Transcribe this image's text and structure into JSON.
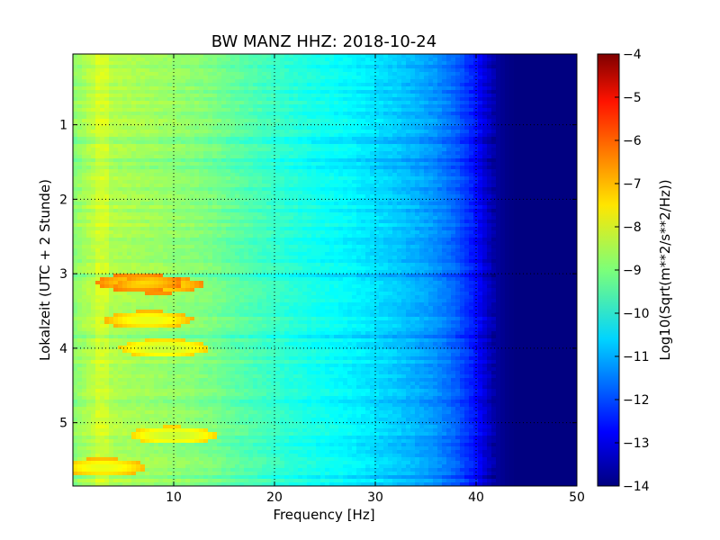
{
  "chart_data": {
    "type": "heatmap",
    "title": "BW MANZ HHZ: 2018-10-24",
    "xlabel": "Frequency [Hz]",
    "ylabel": "Lokalzeit (UTC + 2 Stunde)",
    "xlim": [
      0,
      50
    ],
    "ylim": [
      5.85,
      0.05
    ],
    "x_ticks": [
      10,
      20,
      30,
      40,
      50
    ],
    "y_ticks": [
      1,
      2,
      3,
      4,
      5
    ],
    "grid": true,
    "colormap": "jet",
    "colorbar": {
      "label": "Log10(Sqrt(m**2/s**2/Hz))",
      "range": [
        -14,
        -4
      ],
      "ticks": [
        -4,
        -5,
        -6,
        -7,
        -8,
        -9,
        -10,
        -11,
        -12,
        -13,
        -14
      ]
    },
    "frequency_profile_hz": [
      0,
      2,
      4,
      6,
      8,
      10,
      12,
      14,
      16,
      18,
      20,
      22,
      24,
      26,
      28,
      30,
      32,
      34,
      36,
      38,
      40,
      41,
      42,
      43,
      44,
      46,
      48,
      50
    ],
    "frequency_profile_value": [
      -8.9,
      -8.4,
      -8.5,
      -8.6,
      -8.7,
      -8.8,
      -8.9,
      -9.05,
      -9.3,
      -9.5,
      -9.7,
      -9.9,
      -10.05,
      -10.2,
      -10.35,
      -10.55,
      -10.75,
      -11.0,
      -11.3,
      -11.8,
      -12.6,
      -13.2,
      -13.7,
      -13.9,
      -14.0,
      -14.0,
      -14.0,
      -14.0
    ],
    "highlights": [
      {
        "f": 6.5,
        "t": 3.12,
        "value": -7.4
      },
      {
        "f": 8.5,
        "t": 3.15,
        "value": -7.6
      },
      {
        "f": 7.5,
        "t": 3.62,
        "value": -8.0
      },
      {
        "f": 10.0,
        "t": 5.17,
        "value": -8.3
      },
      {
        "f": 3.0,
        "t": 5.6,
        "value": -8.0
      },
      {
        "f": 9.0,
        "t": 4.0,
        "value": -8.3
      }
    ]
  }
}
